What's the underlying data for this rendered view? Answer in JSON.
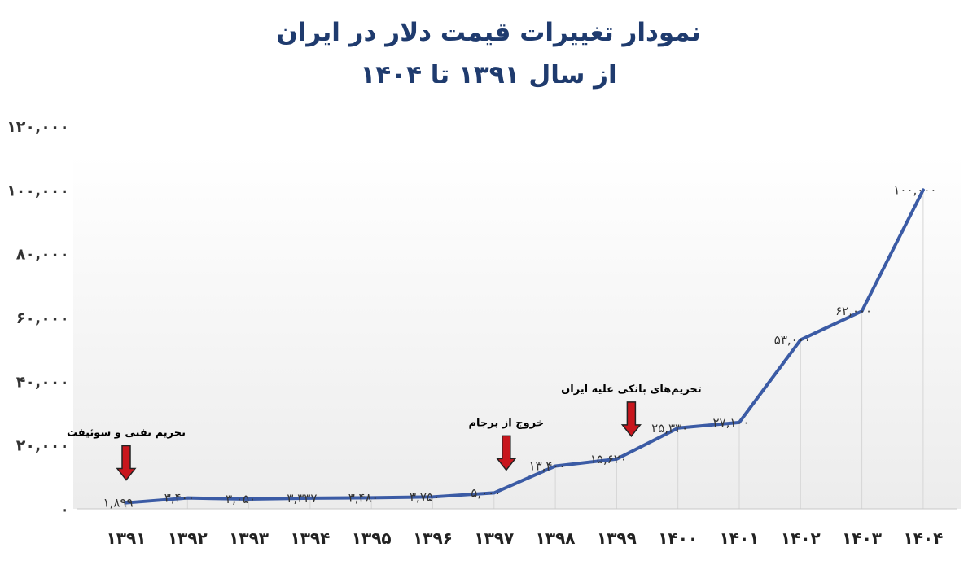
{
  "title": {
    "line1": "نمودار تغییرات قیمت دلار در ایران",
    "line2": "از سال ۱۳۹۱ تا ۱۴۰۴"
  },
  "chart_data": {
    "type": "line",
    "title": "نمودار تغییرات قیمت دلار در ایران — از سال ۱۳۹۱ تا ۱۴۰۴",
    "xlabel": "",
    "ylabel": "",
    "categories": [
      "۱۳۹۱",
      "۱۳۹۲",
      "۱۳۹۳",
      "۱۳۹۴",
      "۱۳۹۵",
      "۱۳۹۶",
      "۱۳۹۷",
      "۱۳۹۸",
      "۱۳۹۹",
      "۱۴۰۰",
      "۱۴۰۱",
      "۱۴۰۲",
      "۱۴۰۳",
      "۱۴۰۴"
    ],
    "values": [
      1899,
      3400,
      3050,
      3337,
      3480,
      3750,
      5000,
      13400,
      15620,
      25330,
      27100,
      53000,
      62000,
      100000
    ],
    "data_labels": [
      "۱,۸۹۹",
      "۳,۴۰۰",
      "۳,۰۵۰",
      "۳,۳۳۷",
      "۳,۴۸۰",
      "۳,۷۵۰",
      "۵,۰۰۰",
      "۱۳,۴۰۰",
      "۱۵,۶۲۰",
      "۲۵,۳۳۰",
      "۲۷,۱۰۰",
      "۵۳,۰۰۰",
      "۶۲,۰۰۰",
      "۱۰۰,۰۰۰"
    ],
    "ylim": [
      0,
      120000
    ],
    "yticks": [
      0,
      20000,
      40000,
      60000,
      80000,
      100000,
      120000
    ],
    "ytick_labels": [
      "۰",
      "۲۰,۰۰۰",
      "۴۰,۰۰۰",
      "۶۰,۰۰۰",
      "۸۰,۰۰۰",
      "۱۰۰,۰۰۰",
      "۱۲۰,۰۰۰"
    ],
    "line_color": "#3b5ba5",
    "arrow_color": "#c8161d",
    "grid": "vertical drop lines",
    "annotations": [
      {
        "text": "تحریم نفتی و سوئیفت",
        "category_index": 0
      },
      {
        "text": "خروج از برجام",
        "category_index": 6
      },
      {
        "text": "تحریم‌های بانکی علیه ایران",
        "category_index": 8
      }
    ]
  }
}
